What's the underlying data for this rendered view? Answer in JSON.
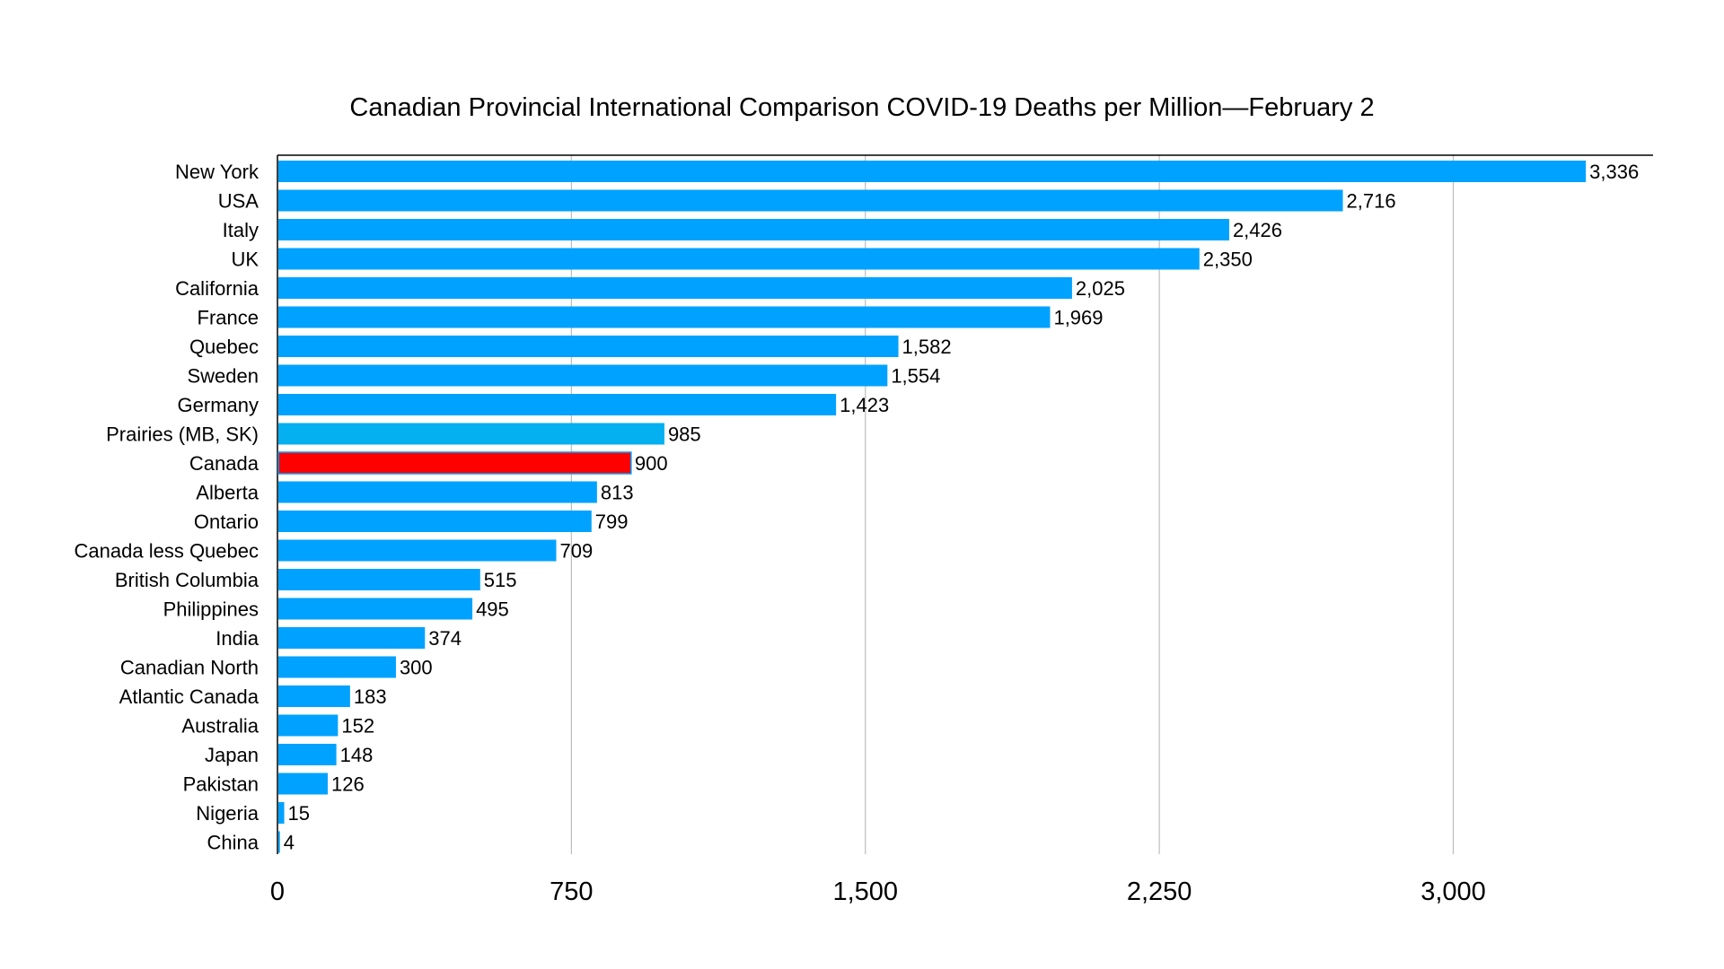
{
  "chart_data": {
    "type": "bar",
    "orientation": "horizontal",
    "title": "Canadian Provincial International Comparison COVID-19 Deaths per Million—February 2",
    "xlabel": "",
    "ylabel": "",
    "xlim": [
      0,
      3500
    ],
    "xticks": [
      0,
      750,
      1500,
      2250,
      3000
    ],
    "xtick_labels": [
      "0",
      "750",
      "1,500",
      "2,250",
      "3,000"
    ],
    "grid": "vertical",
    "categories": [
      "New York",
      "USA",
      "Italy",
      "UK",
      "California",
      "France",
      "Quebec",
      "Sweden",
      "Germany",
      "Prairies (MB, SK)",
      "Canada",
      "Alberta",
      "Ontario",
      "Canada less Quebec",
      "British Columbia",
      "Philippines",
      "India",
      "Canadian North",
      "Atlantic Canada",
      "Australia",
      "Japan",
      "Pakistan",
      "Nigeria",
      "China"
    ],
    "values": [
      3336,
      2716,
      2426,
      2350,
      2025,
      1969,
      1582,
      1554,
      1423,
      985,
      900,
      813,
      799,
      709,
      515,
      495,
      374,
      300,
      183,
      152,
      148,
      126,
      15,
      4
    ],
    "value_labels": [
      "3,336",
      "2,716",
      "2,426",
      "2,350",
      "2,025",
      "1,969",
      "1,582",
      "1,554",
      "1,423",
      "985",
      "900",
      "813",
      "799",
      "709",
      "515",
      "495",
      "374",
      "300",
      "183",
      "152",
      "148",
      "126",
      "15",
      "4"
    ],
    "colors": {
      "default": "#00A2FF",
      "Prairies (MB, SK)": "#04B0F0",
      "Canada": "#FF0000"
    }
  }
}
